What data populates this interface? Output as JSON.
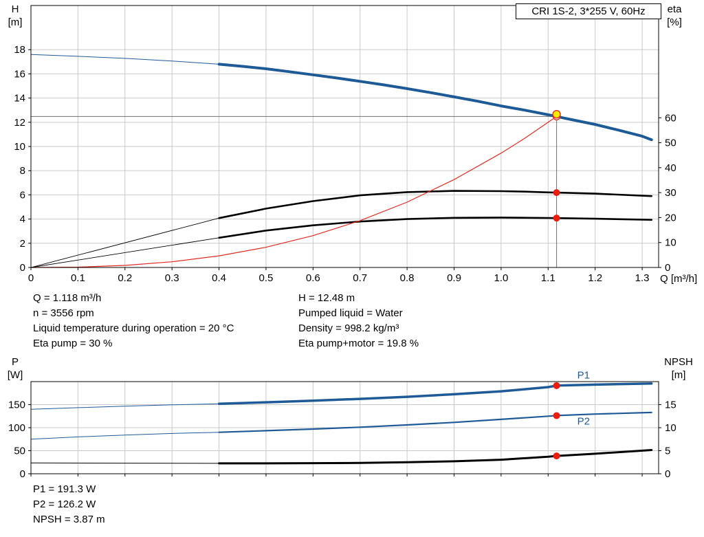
{
  "title_box": "CRI 1S-2, 3*255 V, 60Hz",
  "axes": {
    "h": [
      "H",
      "[m]"
    ],
    "eta": [
      "eta",
      "[%]"
    ],
    "q": "Q [m³/h]",
    "p": [
      "P",
      "[W]"
    ],
    "npsh": [
      "NPSH",
      "[m]"
    ]
  },
  "info_top": {
    "left": [
      "Q = 1.118 m³/h",
      "n = 3556 rpm",
      "Liquid temperature during operation = 20 °C",
      "Eta pump = 30 %"
    ],
    "right": [
      "H = 12.48 m",
      "Pumped liquid = Water",
      "Density = 998.2 kg/m³",
      "Eta pump+motor = 19.8 %"
    ]
  },
  "info_bottom": [
    "P1 = 191.3 W",
    "P2 = 126.2 W",
    "NPSH = 3.87 m"
  ],
  "colors": {
    "curve_blue": "#1d5a96",
    "curve_black": "#000000",
    "curve_red": "#e02b20",
    "dot_red": "#ea1c0d",
    "duty_yellow": "#ffec00",
    "grid": "#c9c9c9",
    "guide": "#707070",
    "axis": "#000000"
  },
  "chart_data": [
    {
      "id": "hq-eta",
      "type": "line",
      "title": "CRI 1S-2, 3*255 V, 60Hz",
      "xlabel": "Q [m³/h]",
      "ylabel_left": "H [m]",
      "ylabel_right": "eta [%]",
      "xlim": [
        0,
        1.335
      ],
      "ylim_left": [
        0,
        21.65
      ],
      "ylim_right": [
        0,
        105
      ],
      "grid": true,
      "xticks": [
        0,
        0.1,
        0.2,
        0.3,
        0.4,
        0.5,
        0.6,
        0.7,
        0.8,
        0.9,
        1.0,
        1.1,
        1.2,
        1.3
      ],
      "xtick_labels": [
        "0",
        "0.1",
        "0.2",
        "0.3",
        "0.4",
        "0.5",
        "0.6",
        "0.7",
        "0.8",
        "0.9",
        "1.0",
        "1.1",
        "1.2",
        "1.3"
      ],
      "yticks_left": [
        0,
        2,
        4,
        6,
        8,
        10,
        12,
        14,
        16,
        18
      ],
      "ytick_labels_left": [
        "0",
        "2",
        "4",
        "6",
        "8",
        "10",
        "12",
        "14",
        "16",
        "18"
      ],
      "yticks_right": [
        0,
        10,
        20,
        30,
        40,
        50,
        60
      ],
      "ytick_labels_right": [
        "0",
        "10",
        "20",
        "30",
        "40",
        "50",
        "60"
      ],
      "duty_point": {
        "Q": 1.118,
        "H": 12.48,
        "eta_pump": 30,
        "eta_pump_motor": 19.8,
        "n_rpm": 3556
      },
      "guides": [
        {
          "type": "h",
          "axis": "left",
          "y": 12.48,
          "x_from": 0,
          "x_to": 1.118
        },
        {
          "type": "v",
          "axis": "left",
          "x": 1.118,
          "y_from": 0,
          "y_to": 12.48
        }
      ],
      "series": [
        {
          "name": "hq-lowflow",
          "axis": "left",
          "color": "curve_blue",
          "width": 1,
          "points": [
            [
              0,
              17.6
            ],
            [
              0.1,
              17.45
            ],
            [
              0.2,
              17.28
            ],
            [
              0.3,
              17.06
            ],
            [
              0.4,
              16.8
            ]
          ]
        },
        {
          "name": "hq-main",
          "axis": "left",
          "color": "curve_blue",
          "width": 4,
          "points": [
            [
              0.4,
              16.8
            ],
            [
              0.45,
              16.62
            ],
            [
              0.5,
              16.42
            ],
            [
              0.55,
              16.18
            ],
            [
              0.6,
              15.92
            ],
            [
              0.65,
              15.66
            ],
            [
              0.7,
              15.38
            ],
            [
              0.75,
              15.09
            ],
            [
              0.8,
              14.78
            ],
            [
              0.85,
              14.45
            ],
            [
              0.9,
              14.1
            ],
            [
              0.95,
              13.74
            ],
            [
              1.0,
              13.35
            ],
            [
              1.05,
              13.0
            ],
            [
              1.1,
              12.62
            ],
            [
              1.118,
              12.48
            ],
            [
              1.15,
              12.22
            ],
            [
              1.2,
              11.82
            ],
            [
              1.25,
              11.35
            ],
            [
              1.3,
              10.85
            ],
            [
              1.32,
              10.55
            ]
          ]
        },
        {
          "name": "eta-pump-lowflow",
          "axis": "right",
          "color": "curve_black",
          "width": 0.9,
          "points": [
            [
              0,
              0
            ],
            [
              0.4,
              19.8
            ]
          ]
        },
        {
          "name": "eta-pump",
          "axis": "right",
          "color": "curve_black",
          "width": 2.6,
          "points": [
            [
              0.4,
              19.8
            ],
            [
              0.5,
              23.6
            ],
            [
              0.6,
              26.6
            ],
            [
              0.7,
              28.9
            ],
            [
              0.8,
              30.2
            ],
            [
              0.9,
              30.7
            ],
            [
              1.0,
              30.6
            ],
            [
              1.05,
              30.4
            ],
            [
              1.1,
              30.1
            ],
            [
              1.118,
              30
            ],
            [
              1.2,
              29.6
            ],
            [
              1.32,
              28.6
            ]
          ]
        },
        {
          "name": "eta-pump-motor-lowflow",
          "axis": "right",
          "color": "curve_black",
          "width": 0.9,
          "points": [
            [
              0,
              0
            ],
            [
              0.4,
              11.9
            ]
          ]
        },
        {
          "name": "eta-pump-motor",
          "axis": "right",
          "color": "curve_black",
          "width": 2.6,
          "points": [
            [
              0.4,
              11.9
            ],
            [
              0.5,
              14.8
            ],
            [
              0.6,
              16.9
            ],
            [
              0.7,
              18.4
            ],
            [
              0.8,
              19.4
            ],
            [
              0.9,
              19.9
            ],
            [
              1.0,
              20.0
            ],
            [
              1.1,
              19.85
            ],
            [
              1.118,
              19.8
            ],
            [
              1.2,
              19.55
            ],
            [
              1.32,
              19.1
            ]
          ]
        },
        {
          "name": "duty-system-curve",
          "axis": "left",
          "color": "curve_red",
          "width": 1.2,
          "points": [
            [
              0,
              0
            ],
            [
              0.1,
              0.03
            ],
            [
              0.2,
              0.17
            ],
            [
              0.3,
              0.47
            ],
            [
              0.4,
              0.96
            ],
            [
              0.5,
              1.67
            ],
            [
              0.6,
              2.63
            ],
            [
              0.7,
              3.87
            ],
            [
              0.8,
              5.4
            ],
            [
              0.9,
              7.26
            ],
            [
              1.0,
              9.45
            ],
            [
              1.05,
              10.67
            ],
            [
              1.118,
              12.48
            ]
          ]
        }
      ],
      "markers": [
        {
          "style": "open-red",
          "axis": "left",
          "x": 1.118,
          "y": 12.48,
          "r": 5
        },
        {
          "style": "duty-yellow",
          "axis": "left",
          "x": 1.118,
          "y": 12.66,
          "r": 5.5
        },
        {
          "style": "dot-red",
          "axis": "right",
          "x": 1.118,
          "y": 30,
          "r": 4.5
        },
        {
          "style": "dot-red",
          "axis": "right",
          "x": 1.118,
          "y": 19.8,
          "r": 4.5
        }
      ],
      "labels": []
    },
    {
      "id": "power-npsh",
      "type": "line",
      "title": "",
      "xlabel": "",
      "ylabel_left": "P [W]",
      "ylabel_right": "NPSH [m]",
      "xlim": [
        0,
        1.335
      ],
      "ylim_left": [
        0,
        200
      ],
      "ylim_right": [
        0,
        20
      ],
      "grid": true,
      "xticks": [
        0,
        0.1,
        0.2,
        0.3,
        0.4,
        0.5,
        0.6,
        0.7,
        0.8,
        0.9,
        1.0,
        1.1,
        1.2,
        1.3
      ],
      "xtick_labels": [],
      "yticks_left": [
        0,
        50,
        100,
        150
      ],
      "ytick_labels_left": [
        "0",
        "50",
        "100",
        "150"
      ],
      "yticks_right": [
        0,
        5,
        10,
        15
      ],
      "ytick_labels_right": [
        "0",
        "5",
        "10",
        "15"
      ],
      "duty_point": {
        "Q": 1.118,
        "P1_W": 191.3,
        "P2_W": 126.2,
        "NPSH_m": 3.87
      },
      "guides": [],
      "series": [
        {
          "name": "p1-lowflow",
          "axis": "left",
          "color": "curve_blue",
          "width": 1,
          "points": [
            [
              0,
              140
            ],
            [
              0.1,
              143.5
            ],
            [
              0.2,
              146.5
            ],
            [
              0.3,
              149.5
            ],
            [
              0.4,
              152
            ]
          ]
        },
        {
          "name": "p1",
          "axis": "left",
          "color": "curve_blue",
          "width": 3.5,
          "points": [
            [
              0.4,
              152
            ],
            [
              0.5,
              155
            ],
            [
              0.6,
              158.5
            ],
            [
              0.7,
              162.5
            ],
            [
              0.8,
              167
            ],
            [
              0.9,
              172.5
            ],
            [
              1.0,
              179
            ],
            [
              1.05,
              183.5
            ],
            [
              1.1,
              188
            ],
            [
              1.118,
              191.3
            ],
            [
              1.2,
              193.5
            ],
            [
              1.32,
              196
            ]
          ]
        },
        {
          "name": "p2-lowflow",
          "axis": "left",
          "color": "curve_blue",
          "width": 1,
          "points": [
            [
              0,
              75
            ],
            [
              0.1,
              80
            ],
            [
              0.2,
              84
            ],
            [
              0.3,
              87.5
            ],
            [
              0.4,
              90
            ]
          ]
        },
        {
          "name": "p2",
          "axis": "left",
          "color": "curve_blue",
          "width": 2.2,
          "points": [
            [
              0.4,
              90
            ],
            [
              0.5,
              93.5
            ],
            [
              0.6,
              97
            ],
            [
              0.7,
              101
            ],
            [
              0.8,
              106
            ],
            [
              0.9,
              111.5
            ],
            [
              1.0,
              118
            ],
            [
              1.1,
              125
            ],
            [
              1.118,
              126.2
            ],
            [
              1.2,
              129.5
            ],
            [
              1.32,
              133
            ]
          ]
        },
        {
          "name": "npsh-lowflow",
          "axis": "right",
          "color": "curve_black",
          "width": 1,
          "points": [
            [
              0,
              2.35
            ],
            [
              0.2,
              2.3
            ],
            [
              0.4,
              2.25
            ]
          ]
        },
        {
          "name": "npsh",
          "axis": "right",
          "color": "curve_black",
          "width": 3,
          "points": [
            [
              0.4,
              2.25
            ],
            [
              0.5,
              2.25
            ],
            [
              0.6,
              2.3
            ],
            [
              0.7,
              2.35
            ],
            [
              0.8,
              2.5
            ],
            [
              0.9,
              2.7
            ],
            [
              1.0,
              3.05
            ],
            [
              1.1,
              3.7
            ],
            [
              1.118,
              3.87
            ],
            [
              1.2,
              4.35
            ],
            [
              1.32,
              5.15
            ]
          ]
        }
      ],
      "markers": [
        {
          "style": "dot-red",
          "axis": "left",
          "x": 1.118,
          "y": 191.3,
          "r": 4.5
        },
        {
          "style": "dot-red",
          "axis": "left",
          "x": 1.118,
          "y": 126.2,
          "r": 4.5
        },
        {
          "style": "dot-red",
          "axis": "right",
          "x": 1.118,
          "y": 3.87,
          "r": 4.5
        }
      ],
      "labels": [
        {
          "text": "P1",
          "axis": "left",
          "x": 1.162,
          "y": 207,
          "color": "curve_blue"
        },
        {
          "text": "P2",
          "axis": "left",
          "x": 1.162,
          "y": 107,
          "color": "curve_blue"
        }
      ]
    }
  ]
}
